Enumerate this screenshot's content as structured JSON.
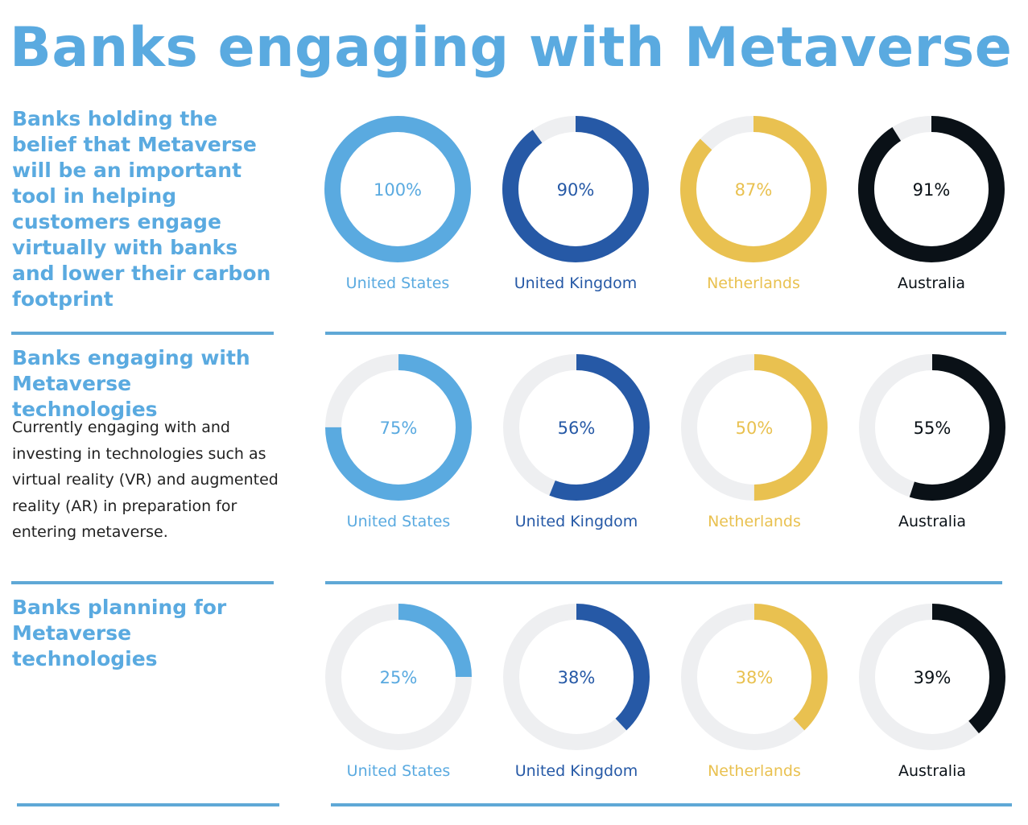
{
  "title": "Banks engaging with Metaverse",
  "colors": {
    "United States": "#5aaae0",
    "United Kingdom": "#2659a6",
    "Netherlands": "#e9c150",
    "Australia": "#0a1117",
    "track": "#eeeff1"
  },
  "sections": [
    {
      "heading": "Banks holding the belief that Metaverse will be an important tool in helping customers engage virtually with banks and lower their carbon footprint"
    },
    {
      "heading": "Banks engaging with Metaverse technologies",
      "description": "Currently engaging with and investing in technologies such as virtual reality (VR) and augmented reality (AR) in preparation for entering metaverse."
    },
    {
      "heading": "Banks planning for Metaverse technologies"
    }
  ],
  "chart_data": [
    {
      "type": "pie",
      "title": "Banks holding the belief that Metaverse will be an important tool",
      "categories": [
        "United States",
        "United Kingdom",
        "Netherlands",
        "Australia"
      ],
      "values": [
        100,
        90,
        87,
        91
      ],
      "labels": [
        "100%",
        "90%",
        "87%",
        "91%"
      ]
    },
    {
      "type": "pie",
      "title": "Banks engaging with Metaverse technologies",
      "categories": [
        "United States",
        "United Kingdom",
        "Netherlands",
        "Australia"
      ],
      "values": [
        75,
        56,
        50,
        55
      ],
      "labels": [
        "75%",
        "56%",
        "50%",
        "55%"
      ]
    },
    {
      "type": "pie",
      "title": "Banks planning for Metaverse technologies",
      "categories": [
        "United States",
        "United Kingdom",
        "Netherlands",
        "Australia"
      ],
      "values": [
        25,
        38,
        38,
        39
      ],
      "labels": [
        "25%",
        "38%",
        "38%",
        "39%"
      ]
    }
  ]
}
